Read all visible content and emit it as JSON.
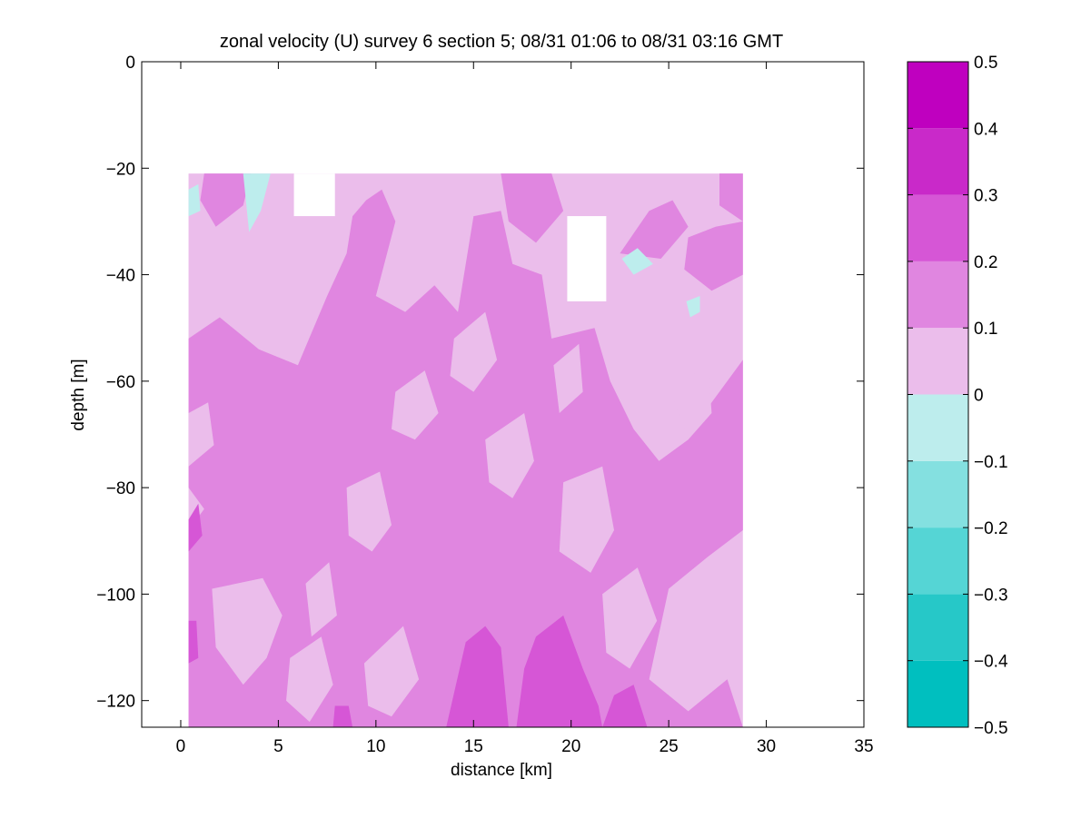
{
  "chart_data": {
    "type": "heatmap",
    "subtype": "filled-contour",
    "title": "zonal velocity (U) survey 6 section 5; 08/31 01:06 to 08/31 03:16 GMT",
    "xlabel": "distance [km]",
    "ylabel": "depth [m]",
    "xlim": [
      -2,
      35
    ],
    "ylim": [
      -125,
      0
    ],
    "xticks": [
      "0",
      "5",
      "10",
      "15",
      "20",
      "25",
      "30",
      "35"
    ],
    "yticks": [
      "0",
      "−20",
      "−40",
      "−60",
      "−80",
      "−100",
      "−120"
    ],
    "grid": false,
    "data_extent": {
      "x": [
        0.4,
        28.8
      ],
      "y": [
        -125,
        -21
      ]
    },
    "colorbar": {
      "position": "right",
      "limits": [
        -0.5,
        0.5
      ],
      "levels": [
        -0.5,
        -0.4,
        -0.3,
        -0.2,
        -0.1,
        0,
        0.1,
        0.2,
        0.3,
        0.4,
        0.5
      ],
      "tick_labels": [
        "0.5",
        "0.4",
        "0.3",
        "0.2",
        "0.1",
        "0",
        "−0.1",
        "−0.2",
        "−0.3",
        "−0.4",
        "−0.5"
      ],
      "colors": [
        "#00bfbf",
        "#26c8c8",
        "#55d5d5",
        "#84e0e0",
        "#bdeded",
        "#ebbdeb",
        "#e086e0",
        "#d656d6",
        "#c929c9",
        "#bf00bf"
      ]
    },
    "background_level": 0,
    "regions": [
      {
        "level": 1,
        "points": [
          [
            0.4,
            -52
          ],
          [
            2,
            -48
          ],
          [
            4,
            -54
          ],
          [
            6,
            -57
          ],
          [
            7.5,
            -44
          ],
          [
            8.5,
            -36
          ],
          [
            8.8,
            -29
          ],
          [
            9.5,
            -26
          ],
          [
            10.3,
            -24
          ],
          [
            11,
            -30
          ],
          [
            10,
            -44
          ],
          [
            11.5,
            -47
          ],
          [
            13,
            -42
          ],
          [
            14.2,
            -47
          ],
          [
            15,
            -29
          ],
          [
            16.4,
            -28
          ],
          [
            17,
            -38
          ],
          [
            18.5,
            -40
          ],
          [
            19,
            -52
          ],
          [
            21.2,
            -50
          ],
          [
            22,
            -60
          ],
          [
            23.2,
            -69
          ],
          [
            24.5,
            -75
          ],
          [
            26,
            -71
          ],
          [
            27.2,
            -64
          ],
          [
            28.8,
            -56
          ],
          [
            28.8,
            -88
          ],
          [
            27,
            -93
          ],
          [
            25,
            -99
          ],
          [
            24,
            -116
          ],
          [
            26,
            -122
          ],
          [
            28,
            -116
          ],
          [
            28.8,
            -125
          ],
          [
            0.4,
            -125
          ],
          [
            0.4,
            -88
          ],
          [
            1.2,
            -84
          ],
          [
            0.4,
            -80
          ]
        ]
      },
      {
        "level": 1,
        "points": [
          [
            16.4,
            -21
          ],
          [
            19,
            -21
          ],
          [
            19.6,
            -28
          ],
          [
            18.2,
            -34
          ],
          [
            16.8,
            -30
          ]
        ]
      },
      {
        "level": 1,
        "points": [
          [
            22.5,
            -36
          ],
          [
            24,
            -28
          ],
          [
            25.2,
            -26
          ],
          [
            26,
            -31
          ],
          [
            24.6,
            -37
          ]
        ]
      },
      {
        "level": 1,
        "points": [
          [
            26,
            -33
          ],
          [
            27.4,
            -31
          ],
          [
            28.8,
            -30
          ],
          [
            28.8,
            -40
          ],
          [
            27.2,
            -43
          ],
          [
            25.8,
            -39
          ]
        ]
      },
      {
        "level": 1,
        "points": [
          [
            1.2,
            -21
          ],
          [
            3.6,
            -21
          ],
          [
            3.2,
            -27
          ],
          [
            1.8,
            -31
          ],
          [
            1,
            -26
          ]
        ]
      },
      {
        "level": 1,
        "points": [
          [
            27.6,
            -21
          ],
          [
            28.8,
            -21
          ],
          [
            28.8,
            -30
          ],
          [
            27.6,
            -27
          ]
        ]
      },
      {
        "level": 0,
        "points": [
          [
            1.6,
            -99
          ],
          [
            4.2,
            -97
          ],
          [
            5.2,
            -104
          ],
          [
            4.4,
            -112
          ],
          [
            3.2,
            -117
          ],
          [
            1.8,
            -110
          ]
        ]
      },
      {
        "level": 0,
        "points": [
          [
            5.6,
            -112
          ],
          [
            7.2,
            -108
          ],
          [
            7.8,
            -117
          ],
          [
            6.6,
            -124
          ],
          [
            5.4,
            -120
          ]
        ]
      },
      {
        "level": 0,
        "points": [
          [
            8.5,
            -80
          ],
          [
            10.2,
            -77
          ],
          [
            10.8,
            -87
          ],
          [
            9.8,
            -92
          ],
          [
            8.6,
            -89
          ]
        ]
      },
      {
        "level": 0,
        "points": [
          [
            9.4,
            -113
          ],
          [
            11.4,
            -106
          ],
          [
            12.2,
            -116
          ],
          [
            10.8,
            -123
          ],
          [
            9.6,
            -121
          ]
        ]
      },
      {
        "level": 0,
        "points": [
          [
            11,
            -62
          ],
          [
            12.5,
            -58
          ],
          [
            13.2,
            -66
          ],
          [
            12,
            -71
          ],
          [
            10.8,
            -69
          ]
        ]
      },
      {
        "level": 0,
        "points": [
          [
            14,
            -52
          ],
          [
            15.6,
            -47
          ],
          [
            16.2,
            -56
          ],
          [
            15,
            -62
          ],
          [
            13.8,
            -59
          ]
        ]
      },
      {
        "level": 0,
        "points": [
          [
            15.6,
            -71
          ],
          [
            17.6,
            -66
          ],
          [
            18.1,
            -75
          ],
          [
            17,
            -82
          ],
          [
            15.8,
            -79
          ]
        ]
      },
      {
        "level": 0,
        "points": [
          [
            19.1,
            -57
          ],
          [
            20.4,
            -53
          ],
          [
            20.6,
            -62
          ],
          [
            19.4,
            -66
          ]
        ]
      },
      {
        "level": 0,
        "points": [
          [
            19.6,
            -79
          ],
          [
            21.6,
            -76
          ],
          [
            22.2,
            -88
          ],
          [
            21,
            -96
          ],
          [
            19.4,
            -92
          ]
        ]
      },
      {
        "level": 0,
        "points": [
          [
            21.6,
            -100
          ],
          [
            23.4,
            -95
          ],
          [
            24.4,
            -105
          ],
          [
            23,
            -114
          ],
          [
            21.8,
            -111
          ]
        ]
      },
      {
        "level": 0,
        "points": [
          [
            25.2,
            -63
          ],
          [
            27,
            -56
          ],
          [
            27.2,
            -66
          ],
          [
            26,
            -71
          ]
        ]
      },
      {
        "level": 0,
        "points": [
          [
            0.4,
            -66
          ],
          [
            1.4,
            -64
          ],
          [
            1.7,
            -72
          ],
          [
            0.4,
            -76
          ]
        ]
      },
      {
        "level": 0,
        "points": [
          [
            6.4,
            -98
          ],
          [
            7.6,
            -94
          ],
          [
            8,
            -104
          ],
          [
            6.7,
            -108
          ]
        ]
      },
      {
        "level": 2,
        "points": [
          [
            13.6,
            -125
          ],
          [
            14.6,
            -109
          ],
          [
            15.6,
            -106
          ],
          [
            16.4,
            -110
          ],
          [
            16.8,
            -125
          ]
        ]
      },
      {
        "level": 2,
        "points": [
          [
            17.2,
            -125
          ],
          [
            17.6,
            -114
          ],
          [
            18.2,
            -108
          ],
          [
            19.6,
            -104
          ],
          [
            20.6,
            -114
          ],
          [
            21.4,
            -121
          ],
          [
            21.6,
            -125
          ]
        ]
      },
      {
        "level": 2,
        "points": [
          [
            21.6,
            -125
          ],
          [
            22.2,
            -119
          ],
          [
            23.2,
            -117
          ],
          [
            23.9,
            -125
          ]
        ]
      },
      {
        "level": 2,
        "points": [
          [
            0.4,
            -86
          ],
          [
            0.9,
            -83
          ],
          [
            1.1,
            -89
          ],
          [
            0.4,
            -92
          ]
        ]
      },
      {
        "level": 2,
        "points": [
          [
            0.4,
            -105
          ],
          [
            0.8,
            -105
          ],
          [
            0.9,
            -112
          ],
          [
            0.4,
            -113
          ]
        ]
      },
      {
        "level": 2,
        "points": [
          [
            7.9,
            -121
          ],
          [
            8.6,
            -121
          ],
          [
            8.8,
            -125
          ],
          [
            7.8,
            -125
          ]
        ]
      },
      {
        "level": -1,
        "points": [
          [
            3.2,
            -21
          ],
          [
            4.6,
            -21
          ],
          [
            4.1,
            -28
          ],
          [
            3.5,
            -32
          ]
        ]
      },
      {
        "level": -1,
        "points": [
          [
            0.4,
            -24
          ],
          [
            0.9,
            -23
          ],
          [
            1,
            -28
          ],
          [
            0.4,
            -29
          ]
        ]
      },
      {
        "level": -1,
        "points": [
          [
            22.6,
            -37
          ],
          [
            23.4,
            -35
          ],
          [
            24.2,
            -38
          ],
          [
            23.2,
            -40
          ]
        ]
      },
      {
        "level": -1,
        "points": [
          [
            25.9,
            -45
          ],
          [
            26.6,
            -44
          ],
          [
            26.6,
            -47
          ],
          [
            26.1,
            -48
          ]
        ]
      }
    ],
    "masked_regions": [
      {
        "x": [
          5.8,
          7.9
        ],
        "y": [
          -29,
          -21
        ]
      },
      {
        "x": [
          19.8,
          21.8
        ],
        "y": [
          -45,
          -29
        ]
      }
    ]
  }
}
